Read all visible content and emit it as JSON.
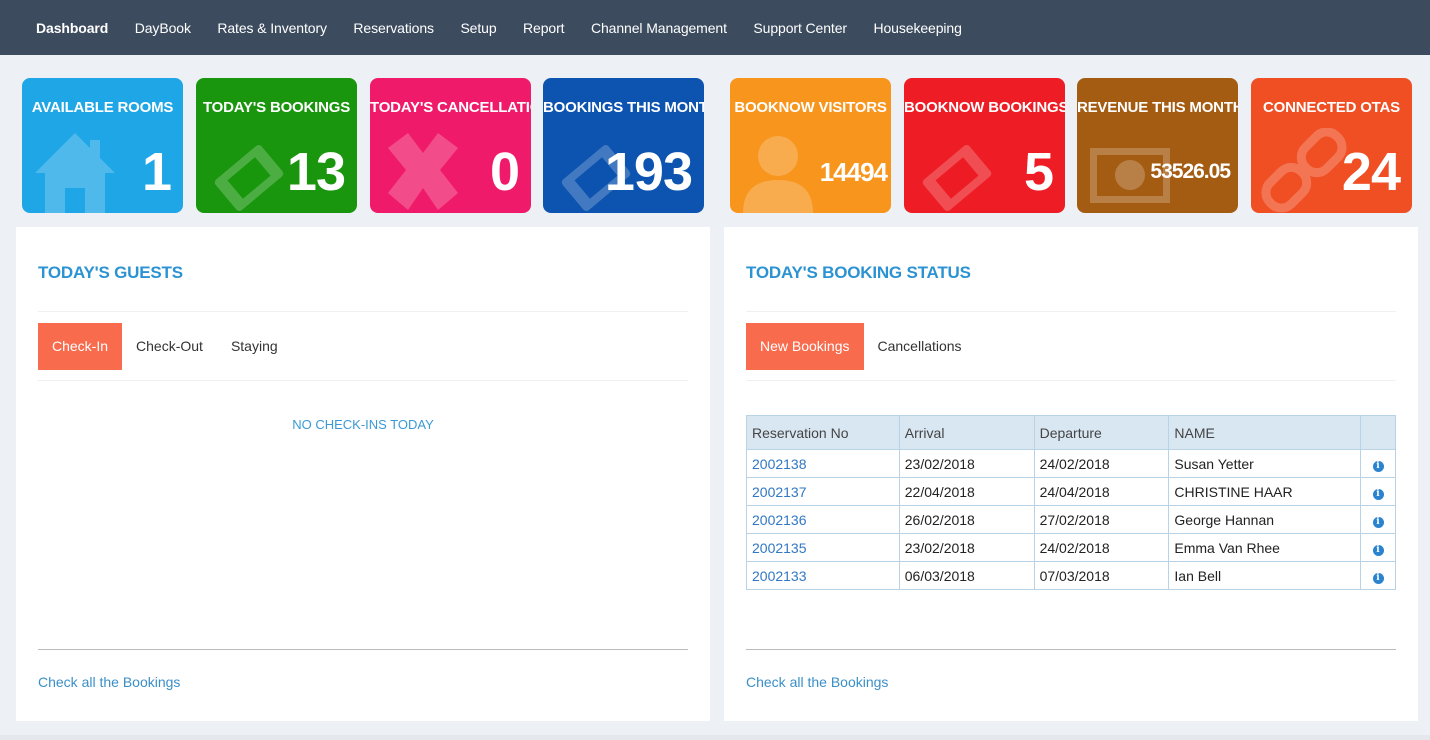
{
  "nav": {
    "items": [
      {
        "label": "Dashboard",
        "active": true
      },
      {
        "label": "DayBook"
      },
      {
        "label": "Rates & Inventory"
      },
      {
        "label": "Reservations"
      },
      {
        "label": "Setup"
      },
      {
        "label": "Report"
      },
      {
        "label": "Channel Management"
      },
      {
        "label": "Support Center"
      },
      {
        "label": "Housekeeping"
      }
    ]
  },
  "tiles": [
    {
      "label": "AVAILABLE ROOMS",
      "value": "1",
      "color": "#1ea6e6",
      "icon": "home-icon"
    },
    {
      "label": "TODAY'S BOOKINGS",
      "value": "13",
      "color": "#19960d",
      "icon": "ticket-icon"
    },
    {
      "label": "TODAY'S CANCELLATION",
      "value": "0",
      "color": "#f01a6a",
      "icon": "cross-icon"
    },
    {
      "label": "BOOKINGS THIS MONTH",
      "value": "193",
      "color": "#0d54b0",
      "icon": "ticket-icon"
    },
    {
      "label": "BOOKNOW VISITORS",
      "value": "14494",
      "color": "#f8951d",
      "icon": "user-icon"
    },
    {
      "label": "BOOKNOW BOOKINGS",
      "value": "5",
      "color": "#ee1d25",
      "icon": "ticket-icon"
    },
    {
      "label": "REVENUE THIS MONTH",
      "value": "53526.05",
      "color": "#a45c13",
      "icon": "money-icon"
    },
    {
      "label": "CONNECTED OTAS",
      "value": "24",
      "color": "#f04e23",
      "icon": "chain-icon"
    }
  ],
  "guests_panel": {
    "title": "TODAY'S GUESTS",
    "tabs": [
      "Check-In",
      "Check-Out",
      "Staying"
    ],
    "active_tab": "Check-In",
    "empty_message": "NO CHECK-INS TODAY",
    "footer_link": "Check all the Bookings"
  },
  "status_panel": {
    "title": "TODAY'S BOOKING STATUS",
    "tabs": [
      "New Bookings",
      "Cancellations"
    ],
    "active_tab": "New Bookings",
    "columns": [
      "Reservation No",
      "Arrival",
      "Departure",
      "NAME",
      ""
    ],
    "rows": [
      {
        "resno": "2002138",
        "arrival": "23/02/2018",
        "departure": "24/02/2018",
        "name": "Susan Yetter"
      },
      {
        "resno": "2002137",
        "arrival": "22/04/2018",
        "departure": "24/04/2018",
        "name": "CHRISTINE HAAR"
      },
      {
        "resno": "2002136",
        "arrival": "26/02/2018",
        "departure": "27/02/2018",
        "name": "George Hannan"
      },
      {
        "resno": "2002135",
        "arrival": "23/02/2018",
        "departure": "24/02/2018",
        "name": "Emma Van Rhee"
      },
      {
        "resno": "2002133",
        "arrival": "06/03/2018",
        "departure": "07/03/2018",
        "name": "Ian Bell"
      }
    ],
    "footer_link": "Check all the Bookings"
  }
}
